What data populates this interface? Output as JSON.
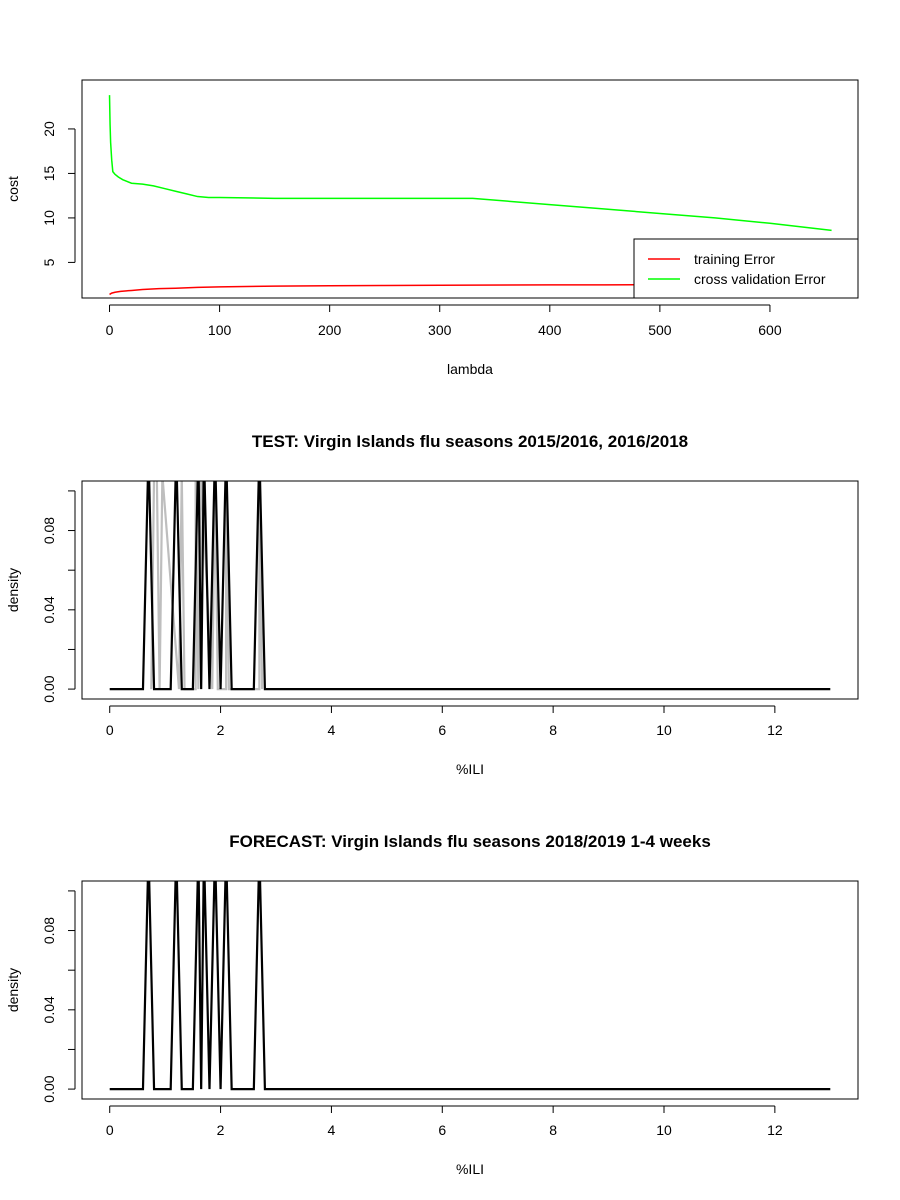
{
  "chart_data": [
    {
      "type": "line",
      "title": "",
      "xlabel": "lambda",
      "ylabel": "cost",
      "xlim": [
        -25,
        680
      ],
      "ylim": [
        1,
        25.5
      ],
      "xticks": [
        0,
        100,
        200,
        300,
        400,
        500,
        600
      ],
      "yticks": [
        5,
        10,
        15,
        20
      ],
      "legend_position": "bottom-right",
      "grid": false,
      "series": [
        {
          "name": "training Error",
          "color": "#ff0000",
          "x": [
            0,
            2,
            5,
            10,
            20,
            30,
            45,
            60,
            80,
            100,
            150,
            200,
            250,
            300,
            330,
            400,
            450,
            500,
            550,
            600,
            656
          ],
          "y": [
            1.4,
            1.55,
            1.65,
            1.75,
            1.85,
            1.95,
            2.05,
            2.1,
            2.2,
            2.25,
            2.33,
            2.38,
            2.41,
            2.44,
            2.45,
            2.47,
            2.48,
            2.49,
            2.5,
            2.5,
            2.5
          ]
        },
        {
          "name": "cross validation Error",
          "color": "#00ff00",
          "x": [
            0,
            0.5,
            1,
            2,
            3,
            5,
            8,
            12,
            20,
            30,
            40,
            50,
            60,
            70,
            80,
            90,
            100,
            150,
            200,
            250,
            300,
            330,
            400,
            450,
            500,
            550,
            600,
            656
          ],
          "y": [
            23.8,
            20.5,
            18.5,
            16.5,
            15.2,
            14.9,
            14.6,
            14.3,
            13.9,
            13.8,
            13.6,
            13.3,
            13.0,
            12.7,
            12.4,
            12.3,
            12.3,
            12.2,
            12.2,
            12.2,
            12.2,
            12.2,
            11.5,
            11.0,
            10.5,
            10.0,
            9.4,
            8.6
          ]
        }
      ]
    },
    {
      "type": "line",
      "title": "TEST: Virgin Islands  flu seasons 2015/2016, 2016/2018",
      "xlabel": "%ILI",
      "ylabel": "density",
      "xlim": [
        -0.5,
        13.5
      ],
      "ylim": [
        -0.005,
        0.105
      ],
      "xticks": [
        0,
        2,
        4,
        6,
        8,
        10,
        12
      ],
      "yticks": [
        0.0,
        0.02,
        0.04,
        0.06,
        0.08,
        0.1
      ],
      "ytick_labels": [
        "0.00",
        "",
        "0.04",
        "",
        "0.08",
        ""
      ],
      "grid": false,
      "series": [
        {
          "color": "#bebebe",
          "x": [
            0.75,
            0.75,
            0.8,
            0.85,
            0.9,
            0.9,
            0.95,
            1.25,
            1.25,
            1.3,
            1.35,
            1.55,
            1.55,
            1.6,
            1.65,
            1.85,
            1.85,
            1.9,
            1.95,
            2.1,
            2.1,
            2.15,
            2.7,
            2.7,
            2.75
          ],
          "y": [
            0.0,
            0.0,
            0.108,
            0.108,
            0.0,
            0.0,
            0.108,
            0.0,
            0.0,
            0.108,
            0.0,
            0.0,
            0.108,
            0.0,
            0.108,
            0.0,
            0.0,
            0.108,
            0.0,
            0.0,
            0.108,
            0.0,
            0.0,
            0.108,
            0.0
          ]
        },
        {
          "color": "#000000",
          "x": [
            0,
            0.6,
            0.7,
            0.8,
            1.1,
            1.2,
            1.3,
            1.5,
            1.6,
            1.65,
            1.7,
            1.8,
            1.9,
            2.0,
            2.1,
            2.2,
            2.6,
            2.7,
            2.8,
            13
          ],
          "y": [
            0,
            0,
            0.12,
            0,
            0,
            0.12,
            0,
            0,
            0.12,
            0,
            0.12,
            0,
            0.12,
            0,
            0.12,
            0,
            0,
            0.12,
            0,
            0
          ]
        }
      ]
    },
    {
      "type": "line",
      "title": "FORECAST: Virgin Islands flu seasons 2018/2019 1-4 weeks",
      "xlabel": "%ILI",
      "ylabel": "density",
      "xlim": [
        -0.5,
        13.5
      ],
      "ylim": [
        -0.005,
        0.105
      ],
      "xticks": [
        0,
        2,
        4,
        6,
        8,
        10,
        12
      ],
      "yticks": [
        0.0,
        0.02,
        0.04,
        0.06,
        0.08,
        0.1
      ],
      "ytick_labels": [
        "0.00",
        "",
        "0.04",
        "",
        "0.08",
        ""
      ],
      "grid": false,
      "series": [
        {
          "color": "#000000",
          "x": [
            0,
            0.6,
            0.7,
            0.8,
            1.1,
            1.2,
            1.3,
            1.5,
            1.6,
            1.65,
            1.7,
            1.8,
            1.9,
            2.0,
            2.1,
            2.2,
            2.6,
            2.7,
            2.8,
            13
          ],
          "y": [
            0,
            0,
            0.12,
            0,
            0,
            0.12,
            0,
            0,
            0.12,
            0,
            0.12,
            0,
            0.12,
            0,
            0.12,
            0,
            0,
            0.12,
            0,
            0
          ]
        }
      ]
    }
  ]
}
